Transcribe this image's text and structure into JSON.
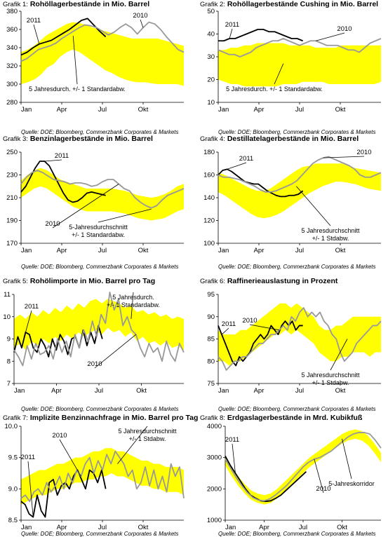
{
  "source": "Quelle: DOE; Bloomberg, Commerzbank Corporates & Markets",
  "months": [
    "Jan",
    "Apr",
    "Jul",
    "Okt"
  ],
  "colors": {
    "band": "#ffff00",
    "series_2011": "#000000",
    "series_2010": "#999999"
  },
  "chart_data": [
    {
      "type": "line",
      "title_prefix": "Grafik 1:",
      "title": "Rohöllagerbestände in Mio. Barrel",
      "ylim": [
        280,
        380
      ],
      "yticks": [
        280,
        300,
        320,
        340,
        360,
        380
      ],
      "xticks": [
        "Jan",
        "Apr",
        "Jul",
        "Okt"
      ],
      "band_label": "5 Jahresdurch. +/-  1 Standardabw.",
      "band": {
        "lower": [
          300,
          302,
          305,
          310,
          318,
          322,
          330,
          335,
          338,
          335,
          330,
          325,
          320,
          315,
          312,
          308,
          305,
          303,
          302,
          302,
          301,
          300,
          300,
          300,
          300,
          298
        ],
        "upper": [
          335,
          338,
          342,
          348,
          354,
          358,
          362,
          366,
          368,
          367,
          365,
          362,
          360,
          358,
          356,
          354,
          352,
          350,
          350,
          350,
          350,
          350,
          348,
          346,
          344,
          342
        ]
      },
      "series": [
        {
          "name": "2011",
          "values": [
            332,
            335,
            340,
            344,
            346,
            348,
            352,
            356,
            360,
            365,
            370,
            372,
            365,
            358,
            352
          ]
        },
        {
          "name": "2010",
          "values": [
            325,
            328,
            333,
            338,
            340,
            342,
            345,
            350,
            354,
            358,
            362,
            365,
            364,
            362,
            358,
            354,
            357,
            362,
            366,
            362,
            355,
            362,
            368,
            366,
            360,
            352,
            345,
            338,
            335
          ]
        }
      ]
    },
    {
      "type": "line",
      "title_prefix": "Grafik 2:",
      "title": "Rohöllagerbestände Cushing in Mio. Barrel",
      "ylim": [
        10,
        50
      ],
      "yticks": [
        10,
        20,
        30,
        40,
        50
      ],
      "xticks": [
        "Jan",
        "Apr",
        "Jul",
        "Okt"
      ],
      "band_label": "5 Jahresdurch.  +/-  1 Standardabw.",
      "band": {
        "lower": [
          20,
          19,
          18,
          18,
          17,
          17,
          17,
          17,
          17,
          17,
          18,
          18,
          18,
          19,
          19,
          19,
          19,
          18,
          18,
          18,
          18,
          18,
          18,
          18,
          18,
          19
        ],
        "upper": [
          33,
          33,
          34,
          34,
          35,
          35,
          36,
          36,
          36,
          36,
          36,
          35,
          35,
          35,
          35,
          34,
          34,
          34,
          34,
          35,
          35,
          35,
          35,
          35,
          35,
          35
        ]
      },
      "series": [
        {
          "name": "2011",
          "values": [
            37,
            37,
            38,
            38,
            39,
            40,
            41,
            42,
            42,
            41,
            41,
            40,
            39,
            38,
            38,
            37
          ]
        },
        {
          "name": "2010",
          "values": [
            33,
            32,
            31,
            31,
            30,
            31,
            32,
            34,
            35,
            36,
            37,
            37,
            38,
            37,
            36,
            35,
            36,
            37,
            37,
            36,
            35,
            35,
            35,
            34,
            33,
            33,
            32,
            34,
            36,
            37,
            38
          ]
        }
      ]
    },
    {
      "type": "line",
      "title_prefix": "Grafik 3:",
      "title": "Benzinlagerbestände in Mio. Barrel",
      "ylim": [
        170,
        250
      ],
      "yticks": [
        170,
        190,
        210,
        230,
        250
      ],
      "xticks": [
        "Jan",
        "Apr",
        "Jul",
        "Okt"
      ],
      "band_label": "5-Jahresdurchschnitt\n+/- 1 Standardabw.",
      "band": {
        "lower": [
          210,
          214,
          218,
          220,
          218,
          214,
          210,
          206,
          202,
          200,
          198,
          198,
          198,
          198,
          198,
          197,
          196,
          194,
          192,
          191,
          190,
          191,
          192,
          195,
          198,
          200
        ],
        "upper": [
          225,
          230,
          234,
          236,
          234,
          230,
          226,
          224,
          222,
          220,
          218,
          218,
          218,
          218,
          218,
          217,
          216,
          214,
          212,
          211,
          210,
          211,
          213,
          216,
          220,
          222
        ]
      },
      "series": [
        {
          "name": "2011",
          "values": [
            215,
            220,
            228,
            236,
            242,
            242,
            238,
            230,
            222,
            214,
            208,
            206,
            207,
            210,
            214,
            215,
            214,
            213,
            212
          ]
        },
        {
          "name": "2010",
          "values": [
            222,
            228,
            232,
            234,
            232,
            229,
            226,
            225,
            224,
            222,
            223,
            223,
            222,
            220,
            221,
            224,
            226,
            226,
            222,
            218,
            216,
            210,
            206,
            203,
            201,
            203,
            208,
            212,
            214,
            216,
            218
          ]
        }
      ]
    },
    {
      "type": "line",
      "title_prefix": "Grafik 4:",
      "title": "Destillatelagerbestände in Mio. Barrel",
      "ylim": [
        100,
        180
      ],
      "yticks": [
        100,
        120,
        140,
        160,
        180
      ],
      "xticks": [
        "Jan",
        "Apr",
        "Jul",
        "Okt"
      ],
      "band_label": "5 Jahresdurchschnitt\n+/- 1 Stdabw.",
      "band": {
        "lower": [
          145,
          142,
          138,
          134,
          130,
          126,
          123,
          122,
          123,
          125,
          128,
          132,
          136,
          140,
          144,
          147,
          150,
          152,
          154,
          154,
          153,
          152,
          150,
          148,
          147,
          146
        ],
        "upper": [
          162,
          160,
          157,
          154,
          151,
          148,
          146,
          146,
          148,
          152,
          156,
          160,
          164,
          167,
          168,
          170,
          170,
          170,
          170,
          170,
          168,
          166,
          165,
          164,
          163,
          162
        ]
      },
      "series": [
        {
          "name": "2011",
          "values": [
            160,
            164,
            165,
            163,
            160,
            157,
            154,
            153,
            152,
            152,
            149,
            146,
            144,
            142,
            141,
            141,
            142,
            142,
            143,
            146
          ]
        },
        {
          "name": "2010",
          "values": [
            160,
            158,
            158,
            157,
            156,
            154,
            152,
            150,
            147,
            145,
            145,
            146,
            148,
            150,
            152,
            155,
            160,
            165,
            170,
            173,
            175,
            176,
            174,
            172,
            170,
            168,
            165,
            160,
            158,
            158,
            160,
            162
          ]
        }
      ]
    },
    {
      "type": "line",
      "title_prefix": "Grafik 5:",
      "title": "Rohölimporte in Mio. Barrel pro Tag",
      "ylim": [
        7,
        11
      ],
      "yticks": [
        7,
        8,
        9,
        10,
        11
      ],
      "xticks": [
        "Jan",
        "Apr",
        "Jul",
        "Okt"
      ],
      "band_label": "5 Jahresdurch.\n+/-  1 Standardabw.",
      "band": {
        "lower": [
          8.6,
          8.8,
          8.5,
          8.9,
          8.7,
          9.0,
          8.8,
          9.1,
          8.9,
          9.2,
          9.0,
          9.3,
          9.1,
          9.3,
          9.4,
          9.2,
          9.5,
          9.3,
          9.4,
          9.1,
          9.3,
          8.9,
          9.1,
          8.8,
          8.9,
          8.7,
          8.9,
          8.6,
          8.7,
          8.5
        ],
        "upper": [
          9.9,
          10.1,
          9.9,
          10.2,
          10.0,
          10.3,
          10.1,
          10.4,
          10.2,
          10.5,
          10.3,
          10.6,
          10.4,
          10.7,
          10.8,
          10.6,
          10.8,
          10.7,
          10.6,
          10.4,
          10.5,
          10.2,
          10.3,
          10.1,
          10.2,
          10.0,
          10.1,
          9.9,
          10.0,
          9.9
        ]
      },
      "series": [
        {
          "name": "2011",
          "values": [
            8.4,
            9.1,
            8.6,
            9.3,
            9.2,
            8.6,
            8.4,
            9.0,
            8.7,
            8.2,
            9.0,
            8.5,
            9.2,
            8.9,
            8.3,
            9.0,
            9.1,
            8.6,
            9.4,
            8.7,
            9.3,
            8.8,
            9.6,
            9.0
          ]
        },
        {
          "name": "2010",
          "values": [
            8.5,
            8.2,
            7.8,
            8.7,
            8.1,
            8.8,
            8.3,
            8.4,
            8.7,
            8.1,
            9.0,
            8.4,
            8.9,
            8.2,
            9.2,
            8.6,
            9.4,
            8.9,
            9.8,
            9.1,
            10.1,
            9.7,
            11.1,
            10.3,
            10.8,
            9.6,
            10.0,
            9.4,
            9.2,
            8.6,
            8.2,
            8.8,
            8.4,
            8.6,
            8.0,
            8.9,
            8.3,
            8.0,
            8.8,
            8.4
          ]
        }
      ]
    },
    {
      "type": "line",
      "title_prefix": "Grafik 6:",
      "title": "Raffinerieauslastung in Prozent",
      "ylim": [
        75,
        95
      ],
      "yticks": [
        75,
        80,
        85,
        90,
        95
      ],
      "xticks": [
        "Jan",
        "Apr",
        "Jul",
        "Okt"
      ],
      "band_label": "5 Jahresdurchschnitt\n+/- 1 Stdabw.",
      "band": {
        "lower": [
          80,
          80,
          79,
          80,
          80,
          81,
          82,
          83,
          84,
          85,
          86,
          86,
          87,
          86,
          87,
          86,
          85,
          84,
          82,
          81,
          80,
          80,
          81,
          81,
          82,
          82,
          82,
          81,
          82,
          82
        ],
        "upper": [
          87,
          86,
          86,
          86,
          87,
          87,
          88,
          89,
          90,
          91,
          92,
          93,
          93,
          92,
          93,
          92,
          91,
          90,
          88,
          87,
          87,
          88,
          88,
          89,
          90,
          90,
          90,
          90,
          90,
          90
        ]
      },
      "series": [
        {
          "name": "2011",
          "values": [
            88,
            86,
            84,
            82,
            80,
            79,
            81,
            80,
            81,
            82,
            84,
            85,
            86,
            85,
            86,
            88,
            87,
            86,
            88,
            89,
            88,
            89,
            87,
            88,
            88
          ]
        },
        {
          "name": "2010",
          "values": [
            81,
            80,
            78,
            79,
            80,
            80,
            81,
            81,
            82,
            83,
            84,
            84,
            85,
            86,
            86,
            87,
            88,
            87,
            90,
            89,
            91,
            92,
            90,
            91,
            90,
            91,
            89,
            88,
            86,
            85,
            82,
            80,
            81,
            82,
            84,
            85,
            86,
            87,
            88,
            88,
            89
          ]
        }
      ]
    },
    {
      "type": "line",
      "title_prefix": "Grafik 7:",
      "title": "Implizite Benzinnachfrage in Mio. Barrel pro Tag",
      "ylim": [
        8.5,
        10.0
      ],
      "yticks": [
        8.5,
        9.0,
        9.5,
        10.0
      ],
      "xticks": [
        "Jan",
        "Apr",
        "Jul",
        "Okt"
      ],
      "band_label": "5 Jahresdurchschnitt\n+/- 1 Stdabw.",
      "band": {
        "lower": [
          8.75,
          8.8,
          8.85,
          8.9,
          8.9,
          8.95,
          9.0,
          9.0,
          9.05,
          9.1,
          9.1,
          9.15,
          9.15,
          9.2,
          9.2,
          9.25,
          9.2,
          9.2,
          9.15,
          9.1,
          9.05,
          9.05,
          9.0,
          9.0,
          8.95,
          8.95,
          8.95,
          8.9
        ],
        "upper": [
          9.15,
          9.2,
          9.25,
          9.3,
          9.3,
          9.35,
          9.4,
          9.4,
          9.45,
          9.5,
          9.5,
          9.55,
          9.6,
          9.6,
          9.65,
          9.65,
          9.6,
          9.6,
          9.55,
          9.5,
          9.45,
          9.45,
          9.4,
          9.4,
          9.35,
          9.35,
          9.35,
          9.3
        ]
      },
      "series": [
        {
          "name": "2011",
          "values": [
            8.8,
            8.75,
            8.6,
            8.55,
            8.9,
            8.65,
            8.55,
            9.1,
            9.15,
            8.9,
            9.05,
            9.1,
            9.0,
            9.2,
            9.3,
            9.15,
            9.0,
            9.3,
            9.25,
            9.1,
            9.3,
            9.0
          ]
        },
        {
          "name": "2010",
          "values": [
            8.85,
            8.9,
            8.8,
            8.95,
            9.0,
            8.9,
            9.1,
            8.95,
            9.05,
            9.2,
            9.0,
            9.25,
            9.1,
            9.3,
            9.2,
            9.4,
            9.5,
            9.25,
            9.45,
            9.3,
            9.55,
            9.4,
            9.6,
            9.5,
            9.4,
            9.2,
            9.3,
            9.0,
            9.1,
            9.35,
            9.05,
            9.3,
            9.0,
            9.2,
            8.95,
            9.4,
            9.2,
            9.35,
            8.85
          ]
        }
      ]
    },
    {
      "type": "line",
      "title_prefix": "Grafik 8:",
      "title": "Erdgaslagerbestände in Mrd. Kubikfuß",
      "ylim": [
        1000,
        4000
      ],
      "yticks": [
        1000,
        2000,
        3000,
        4000
      ],
      "xticks": [
        "Jan",
        "Apr",
        "Jul",
        "Okt"
      ],
      "band_label": "5-Jahreskorridor",
      "band": {
        "lower": [
          2750,
          2400,
          2100,
          1850,
          1650,
          1550,
          1500,
          1550,
          1700,
          1900,
          2100,
          2300,
          2500,
          2700,
          2850,
          3000,
          3150,
          3300,
          3450,
          3550,
          3600,
          3550,
          3400,
          3150,
          2850
        ],
        "upper": [
          3050,
          2700,
          2400,
          2150,
          1950,
          1850,
          1800,
          1850,
          2000,
          2200,
          2400,
          2600,
          2800,
          3000,
          3150,
          3300,
          3450,
          3600,
          3750,
          3850,
          3900,
          3850,
          3700,
          3450,
          3150
        ]
      },
      "series": [
        {
          "name": "2011",
          "values": [
            3050,
            2750,
            2500,
            2250,
            2000,
            1800,
            1700,
            1620,
            1600,
            1620,
            1700,
            1800,
            1950,
            2100,
            2250,
            2400,
            2550
          ]
        },
        {
          "name": "2010",
          "values": [
            2950,
            2650,
            2350,
            2100,
            1880,
            1720,
            1640,
            1620,
            1680,
            1800,
            1950,
            2100,
            2300,
            2500,
            2700,
            2850,
            2950,
            3000,
            3100,
            3200,
            3350,
            3500,
            3650,
            3750,
            3800,
            3800,
            3750,
            3550,
            3300
          ]
        }
      ]
    }
  ]
}
